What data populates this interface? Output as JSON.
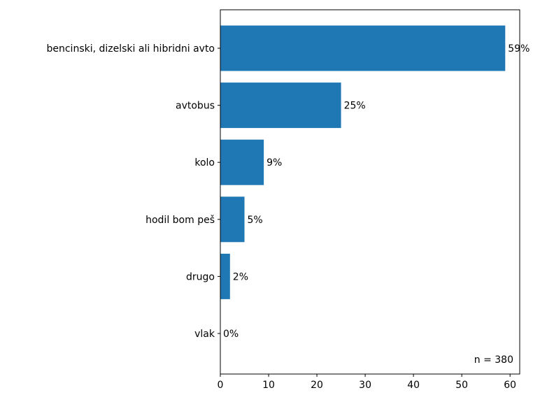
{
  "chart_data": {
    "type": "bar",
    "orientation": "horizontal",
    "categories": [
      "bencinski, dizelski ali hibridni avto",
      "avtobus",
      "kolo",
      "hodil bom peš",
      "drugo",
      "vlak"
    ],
    "values": [
      59,
      25,
      9,
      5,
      2,
      0
    ],
    "data_labels": [
      "59%",
      "25%",
      "9%",
      "5%",
      "2%",
      "0%"
    ],
    "xlim": [
      0,
      62
    ],
    "xticks": [
      0,
      10,
      20,
      30,
      40,
      50,
      60
    ],
    "grid": false,
    "legend": "none",
    "annotation": "n = 380",
    "bar_color": "#1f77b4"
  }
}
